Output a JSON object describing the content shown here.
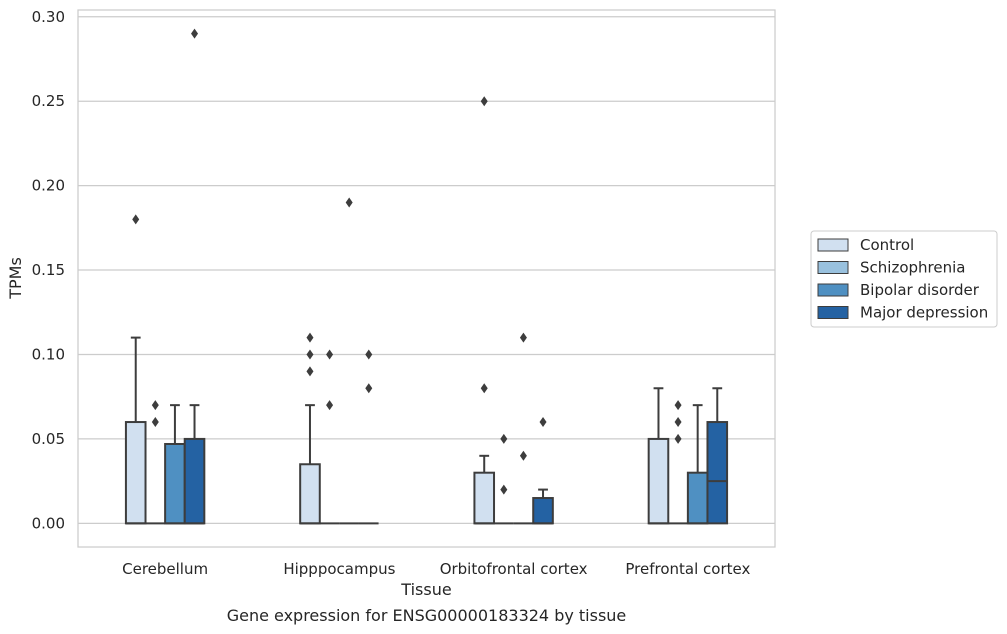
{
  "chart_data": {
    "type": "box",
    "xlabel": "Tissue",
    "ylabel": "TPMs",
    "caption": "Gene expression for ENSG00000183324 by tissue",
    "ylim": [
      -0.014,
      0.304
    ],
    "yticks": [
      0.0,
      0.05,
      0.1,
      0.15,
      0.2,
      0.25,
      0.3
    ],
    "ytick_labels": [
      "0.00",
      "0.05",
      "0.10",
      "0.15",
      "0.20",
      "0.25",
      "0.30"
    ],
    "grid": "horizontal",
    "legend_position": "right",
    "categories": [
      "Cerebellum",
      "Hipppocampus",
      "Orbitofrontal cortex",
      "Prefrontal cortex"
    ],
    "series": [
      {
        "name": "Control",
        "color": "#d1e0f0",
        "boxes": [
          {
            "q1": 0.0,
            "median": 0.0,
            "q3": 0.06,
            "whisker_low": 0.0,
            "whisker_high": 0.11,
            "outliers": [
              0.18
            ]
          },
          {
            "q1": 0.0,
            "median": 0.0,
            "q3": 0.035,
            "whisker_low": 0.0,
            "whisker_high": 0.07,
            "outliers": [
              0.09,
              0.1,
              0.11
            ]
          },
          {
            "q1": 0.0,
            "median": 0.0,
            "q3": 0.03,
            "whisker_low": 0.0,
            "whisker_high": 0.04,
            "outliers": [
              0.08,
              0.25
            ]
          },
          {
            "q1": 0.0,
            "median": 0.0,
            "q3": 0.05,
            "whisker_low": 0.0,
            "whisker_high": 0.08,
            "outliers": []
          }
        ]
      },
      {
        "name": "Schizophrenia",
        "color": "#99c1de",
        "boxes": [
          {
            "q1": 0.0,
            "median": 0.0,
            "q3": 0.0,
            "whisker_low": 0.0,
            "whisker_high": 0.0,
            "outliers": [
              0.06,
              0.07
            ]
          },
          {
            "q1": 0.0,
            "median": 0.0,
            "q3": 0.0,
            "whisker_low": 0.0,
            "whisker_high": 0.0,
            "outliers": [
              0.07,
              0.1
            ]
          },
          {
            "q1": 0.0,
            "median": 0.0,
            "q3": 0.0,
            "whisker_low": 0.0,
            "whisker_high": 0.0,
            "outliers": [
              0.02,
              0.05
            ]
          },
          {
            "q1": 0.0,
            "median": 0.0,
            "q3": 0.0,
            "whisker_low": 0.0,
            "whisker_high": 0.0,
            "outliers": [
              0.05,
              0.06,
              0.07
            ]
          }
        ]
      },
      {
        "name": "Bipolar disorder",
        "color": "#4f90c2",
        "boxes": [
          {
            "q1": 0.0,
            "median": 0.0,
            "q3": 0.047,
            "whisker_low": 0.0,
            "whisker_high": 0.07,
            "outliers": []
          },
          {
            "q1": 0.0,
            "median": 0.0,
            "q3": 0.0,
            "whisker_low": 0.0,
            "whisker_high": 0.0,
            "outliers": [
              0.19
            ]
          },
          {
            "q1": 0.0,
            "median": 0.0,
            "q3": 0.0,
            "whisker_low": 0.0,
            "whisker_high": 0.0,
            "outliers": [
              0.04,
              0.11
            ]
          },
          {
            "q1": 0.0,
            "median": 0.0,
            "q3": 0.03,
            "whisker_low": 0.0,
            "whisker_high": 0.07,
            "outliers": []
          }
        ]
      },
      {
        "name": "Major depression",
        "color": "#2462a3",
        "boxes": [
          {
            "q1": 0.0,
            "median": 0.0,
            "q3": 0.05,
            "whisker_low": 0.0,
            "whisker_high": 0.07,
            "outliers": [
              0.29
            ]
          },
          {
            "q1": 0.0,
            "median": 0.0,
            "q3": 0.0,
            "whisker_low": 0.0,
            "whisker_high": 0.0,
            "outliers": [
              0.08,
              0.1
            ]
          },
          {
            "q1": 0.0,
            "median": 0.0,
            "q3": 0.015,
            "whisker_low": 0.0,
            "whisker_high": 0.02,
            "outliers": [
              0.06
            ]
          },
          {
            "q1": 0.0,
            "median": 0.025,
            "q3": 0.06,
            "whisker_low": 0.0,
            "whisker_high": 0.08,
            "outliers": []
          }
        ]
      }
    ]
  }
}
